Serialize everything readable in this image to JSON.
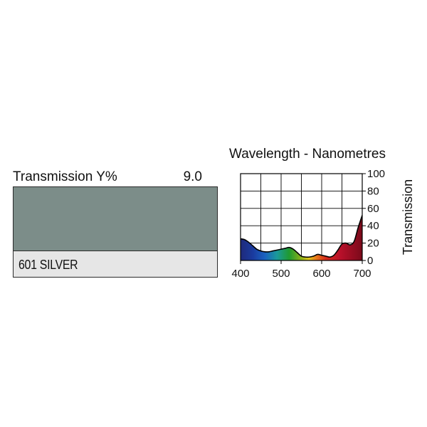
{
  "filter": {
    "transmission_label": "Transmission Y%",
    "transmission_value": "9.0",
    "name": "601 SILVER",
    "swatch_color": "#7c8d89"
  },
  "chart_data": {
    "type": "area",
    "title": "Wavelength - Nanometres",
    "xlabel": "",
    "ylabel": "Transmission",
    "xlim": [
      400,
      700
    ],
    "ylim": [
      0,
      100
    ],
    "x_ticks": [
      "400",
      "500",
      "600",
      "700"
    ],
    "y_ticks": [
      "0",
      "20",
      "40",
      "60",
      "80",
      "100"
    ],
    "grid": true,
    "x": [
      400,
      410,
      420,
      430,
      440,
      450,
      460,
      470,
      480,
      490,
      500,
      510,
      520,
      530,
      540,
      550,
      560,
      570,
      580,
      590,
      600,
      610,
      620,
      630,
      640,
      650,
      660,
      670,
      680,
      690,
      700
    ],
    "y": [
      25,
      24,
      21,
      17,
      13,
      11,
      10,
      10,
      11,
      12,
      13,
      14,
      15,
      13,
      9,
      5,
      4,
      4,
      5,
      7,
      6,
      5,
      4,
      6,
      12,
      19,
      20,
      18,
      22,
      38,
      52
    ]
  }
}
